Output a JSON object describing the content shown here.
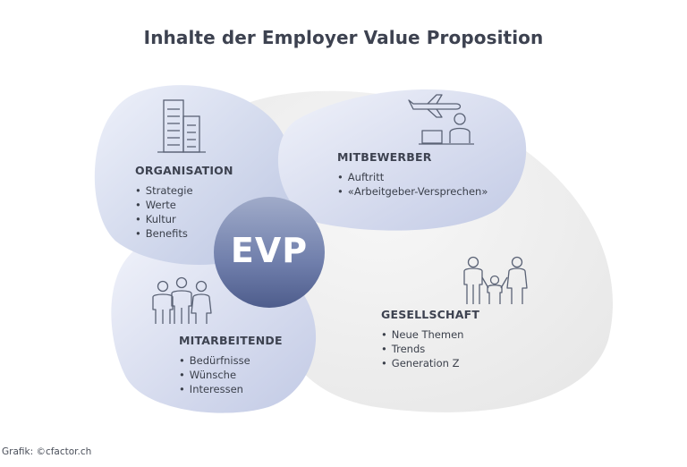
{
  "title": "Inhalte der Employer Value Proposition",
  "center": {
    "label": "EVP"
  },
  "sections": {
    "organisation": {
      "heading": "ORGANISATION",
      "items": [
        "Strategie",
        "Werte",
        "Kultur",
        "Benefits"
      ],
      "icon": "office-building-icon"
    },
    "mitbewerber": {
      "heading": "MITBEWERBER",
      "items": [
        "Auftritt",
        "«Arbeitgeber-Versprechen»"
      ],
      "icon": "airplane-laptop-person-icon"
    },
    "mitarbeitende": {
      "heading": "MITARBEITENDE",
      "items": [
        "Bedürfnisse",
        "Wünsche",
        "Interessen"
      ],
      "icon": "three-people-icon"
    },
    "gesellschaft": {
      "heading": "GESELLSCHAFT",
      "items": [
        "Neue Themen",
        "Trends",
        "Generation Z"
      ],
      "icon": "family-icon"
    }
  },
  "credit": "Grafik: ©cfactor.ch",
  "colors": {
    "blob_blue_light": "#eef1fa",
    "blob_blue_mid": "#c5cde6",
    "blob_grey": "#efefef",
    "evp_circle": "#6b7aa6",
    "icon_stroke": "#5a6275"
  }
}
